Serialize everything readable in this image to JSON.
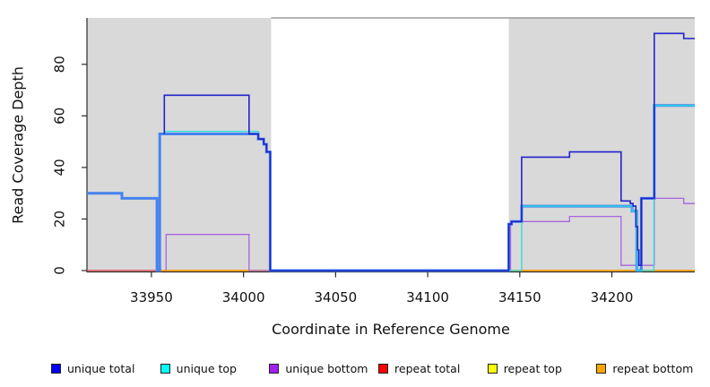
{
  "chart_data": {
    "type": "line",
    "title": "",
    "xlabel": "Coordinate in Reference Genome",
    "ylabel": "Read Coverage Depth",
    "xlim": [
      33915,
      34245
    ],
    "ylim": [
      0,
      98
    ],
    "x_ticks": [
      33950,
      34000,
      34050,
      34100,
      34150,
      34200
    ],
    "y_ticks": [
      0,
      20,
      40,
      60,
      80
    ],
    "grid": false,
    "legend_position": "bottom",
    "band_color": "#d9d9d9",
    "shaded_regions": [
      {
        "from": 33915,
        "to": 34015
      },
      {
        "from": 34144,
        "to": 34245
      }
    ],
    "series": [
      {
        "name": "repeat total",
        "color": "#e03d46",
        "width": 1.3,
        "segments": [
          {
            "points": [
              [
                33915,
                0
              ]
            ],
            "to": 34245
          }
        ]
      },
      {
        "name": "repeat top",
        "color": "#f2ee1f",
        "width": 1.2,
        "segments": [
          {
            "points": [
              [
                33955,
                0
              ]
            ],
            "to": 34014.5
          },
          {
            "points": [
              [
                34145,
                0
              ]
            ],
            "to": 34245
          }
        ]
      },
      {
        "name": "repeat bottom",
        "color": "#ff9b00",
        "width": 1.5,
        "segments": [
          {
            "points": [
              [
                33955,
                0
              ]
            ],
            "to": 34014.5
          },
          {
            "points": [
              [
                34145,
                0
              ]
            ],
            "to": 34245
          }
        ]
      },
      {
        "name": "unique bottom",
        "color": "#a765dd",
        "width": 1.3,
        "segments": [
          {
            "points": [
              [
                33958,
                0
              ],
              [
                33958,
                14
              ],
              [
                34003,
                0
              ],
              [
                34145,
                19
              ],
              [
                34177,
                21
              ],
              [
                34205,
                2
              ],
              [
                34223,
                28
              ],
              [
                34239,
                26
              ]
            ],
            "to": 34245
          }
        ]
      },
      {
        "name": "total (unlabeled thick line)",
        "color": "#4583ee",
        "width": 3,
        "segments": [
          {
            "points": [
              [
                33915,
                30
              ],
              [
                33934,
                28
              ],
              [
                33953,
                0
              ],
              [
                33954.5,
                53
              ],
              [
                34008,
                51
              ],
              [
                34011,
                49
              ],
              [
                34012.5,
                46
              ],
              [
                34014.5,
                0
              ],
              [
                34144,
                18
              ],
              [
                34145.5,
                19
              ],
              [
                34151,
                25
              ],
              [
                34211,
                23
              ],
              [
                34213.5,
                0
              ],
              [
                34216,
                28
              ],
              [
                34223,
                64
              ]
            ],
            "to": 34245
          }
        ]
      },
      {
        "name": "unique top",
        "color": "#25dde0",
        "width": 1.3,
        "segments": [
          {
            "points": [
              [
                33957,
                54
              ],
              [
                34008,
                51
              ],
              [
                34011,
                49
              ],
              [
                34012.5,
                46
              ],
              [
                34014.5,
                0
              ],
              [
                34151,
                25
              ],
              [
                34211,
                23
              ],
              [
                34213.5,
                0
              ],
              [
                34222.8,
                64
              ]
            ],
            "to": 34245
          }
        ]
      },
      {
        "name": "unique total",
        "color": "#2222cc",
        "width": 1.6,
        "segments": [
          {
            "points": [
              [
                33957,
                53
              ],
              [
                33957,
                68
              ],
              [
                34003,
                53
              ],
              [
                34008,
                51
              ],
              [
                34011,
                49
              ],
              [
                34012.5,
                46
              ],
              [
                34014.5,
                0
              ],
              [
                34144,
                18
              ],
              [
                34145.5,
                19
              ],
              [
                34151,
                44
              ],
              [
                34177,
                46
              ],
              [
                34205,
                27
              ],
              [
                34210,
                26
              ],
              [
                34211.5,
                25
              ],
              [
                34213,
                17
              ],
              [
                34214,
                8
              ],
              [
                34214.7,
                2
              ],
              [
                34216,
                28
              ],
              [
                34223,
                92
              ],
              [
                34239,
                90
              ]
            ],
            "to": 34245
          }
        ]
      }
    ],
    "legend": [
      {
        "label": "unique total",
        "color": "#0000ff"
      },
      {
        "label": "unique top",
        "color": "#00ffff"
      },
      {
        "label": "unique bottom",
        "color": "#a020f0"
      },
      {
        "label": "repeat total",
        "color": "#ff0000"
      },
      {
        "label": "repeat top",
        "color": "#ffff00"
      },
      {
        "label": "repeat bottom",
        "color": "#ffa500"
      }
    ]
  }
}
